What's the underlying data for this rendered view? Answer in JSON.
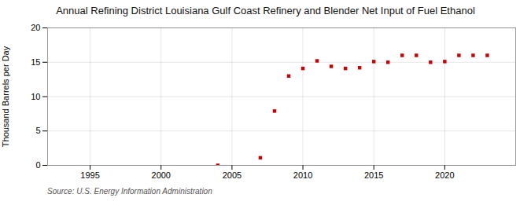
{
  "chart_data": {
    "type": "scatter",
    "title": "Annual Refining District Louisiana Gulf Coast Refinery and Blender Net Input of Fuel Ethanol",
    "ylabel": "Thousand Barrels per Day",
    "source": "Source: U.S. Energy Information Administration",
    "x": [
      2004,
      2007,
      2008,
      2009,
      2010,
      2011,
      2012,
      2013,
      2014,
      2015,
      2016,
      2017,
      2018,
      2019,
      2020,
      2021,
      2022,
      2023
    ],
    "values": [
      0.0,
      1.1,
      7.9,
      13.0,
      14.1,
      15.2,
      14.4,
      14.1,
      14.2,
      15.1,
      15.0,
      16.0,
      16.0,
      15.0,
      15.1,
      16.0,
      16.0,
      16.0
    ],
    "color": "#cc0000",
    "marker": "square",
    "xlim": [
      1992,
      2025
    ],
    "xticks": [
      1995,
      2000,
      2005,
      2010,
      2015,
      2020
    ],
    "ylim": [
      0,
      20
    ],
    "yticks": [
      0,
      5,
      10,
      15,
      20
    ],
    "grid": true
  }
}
